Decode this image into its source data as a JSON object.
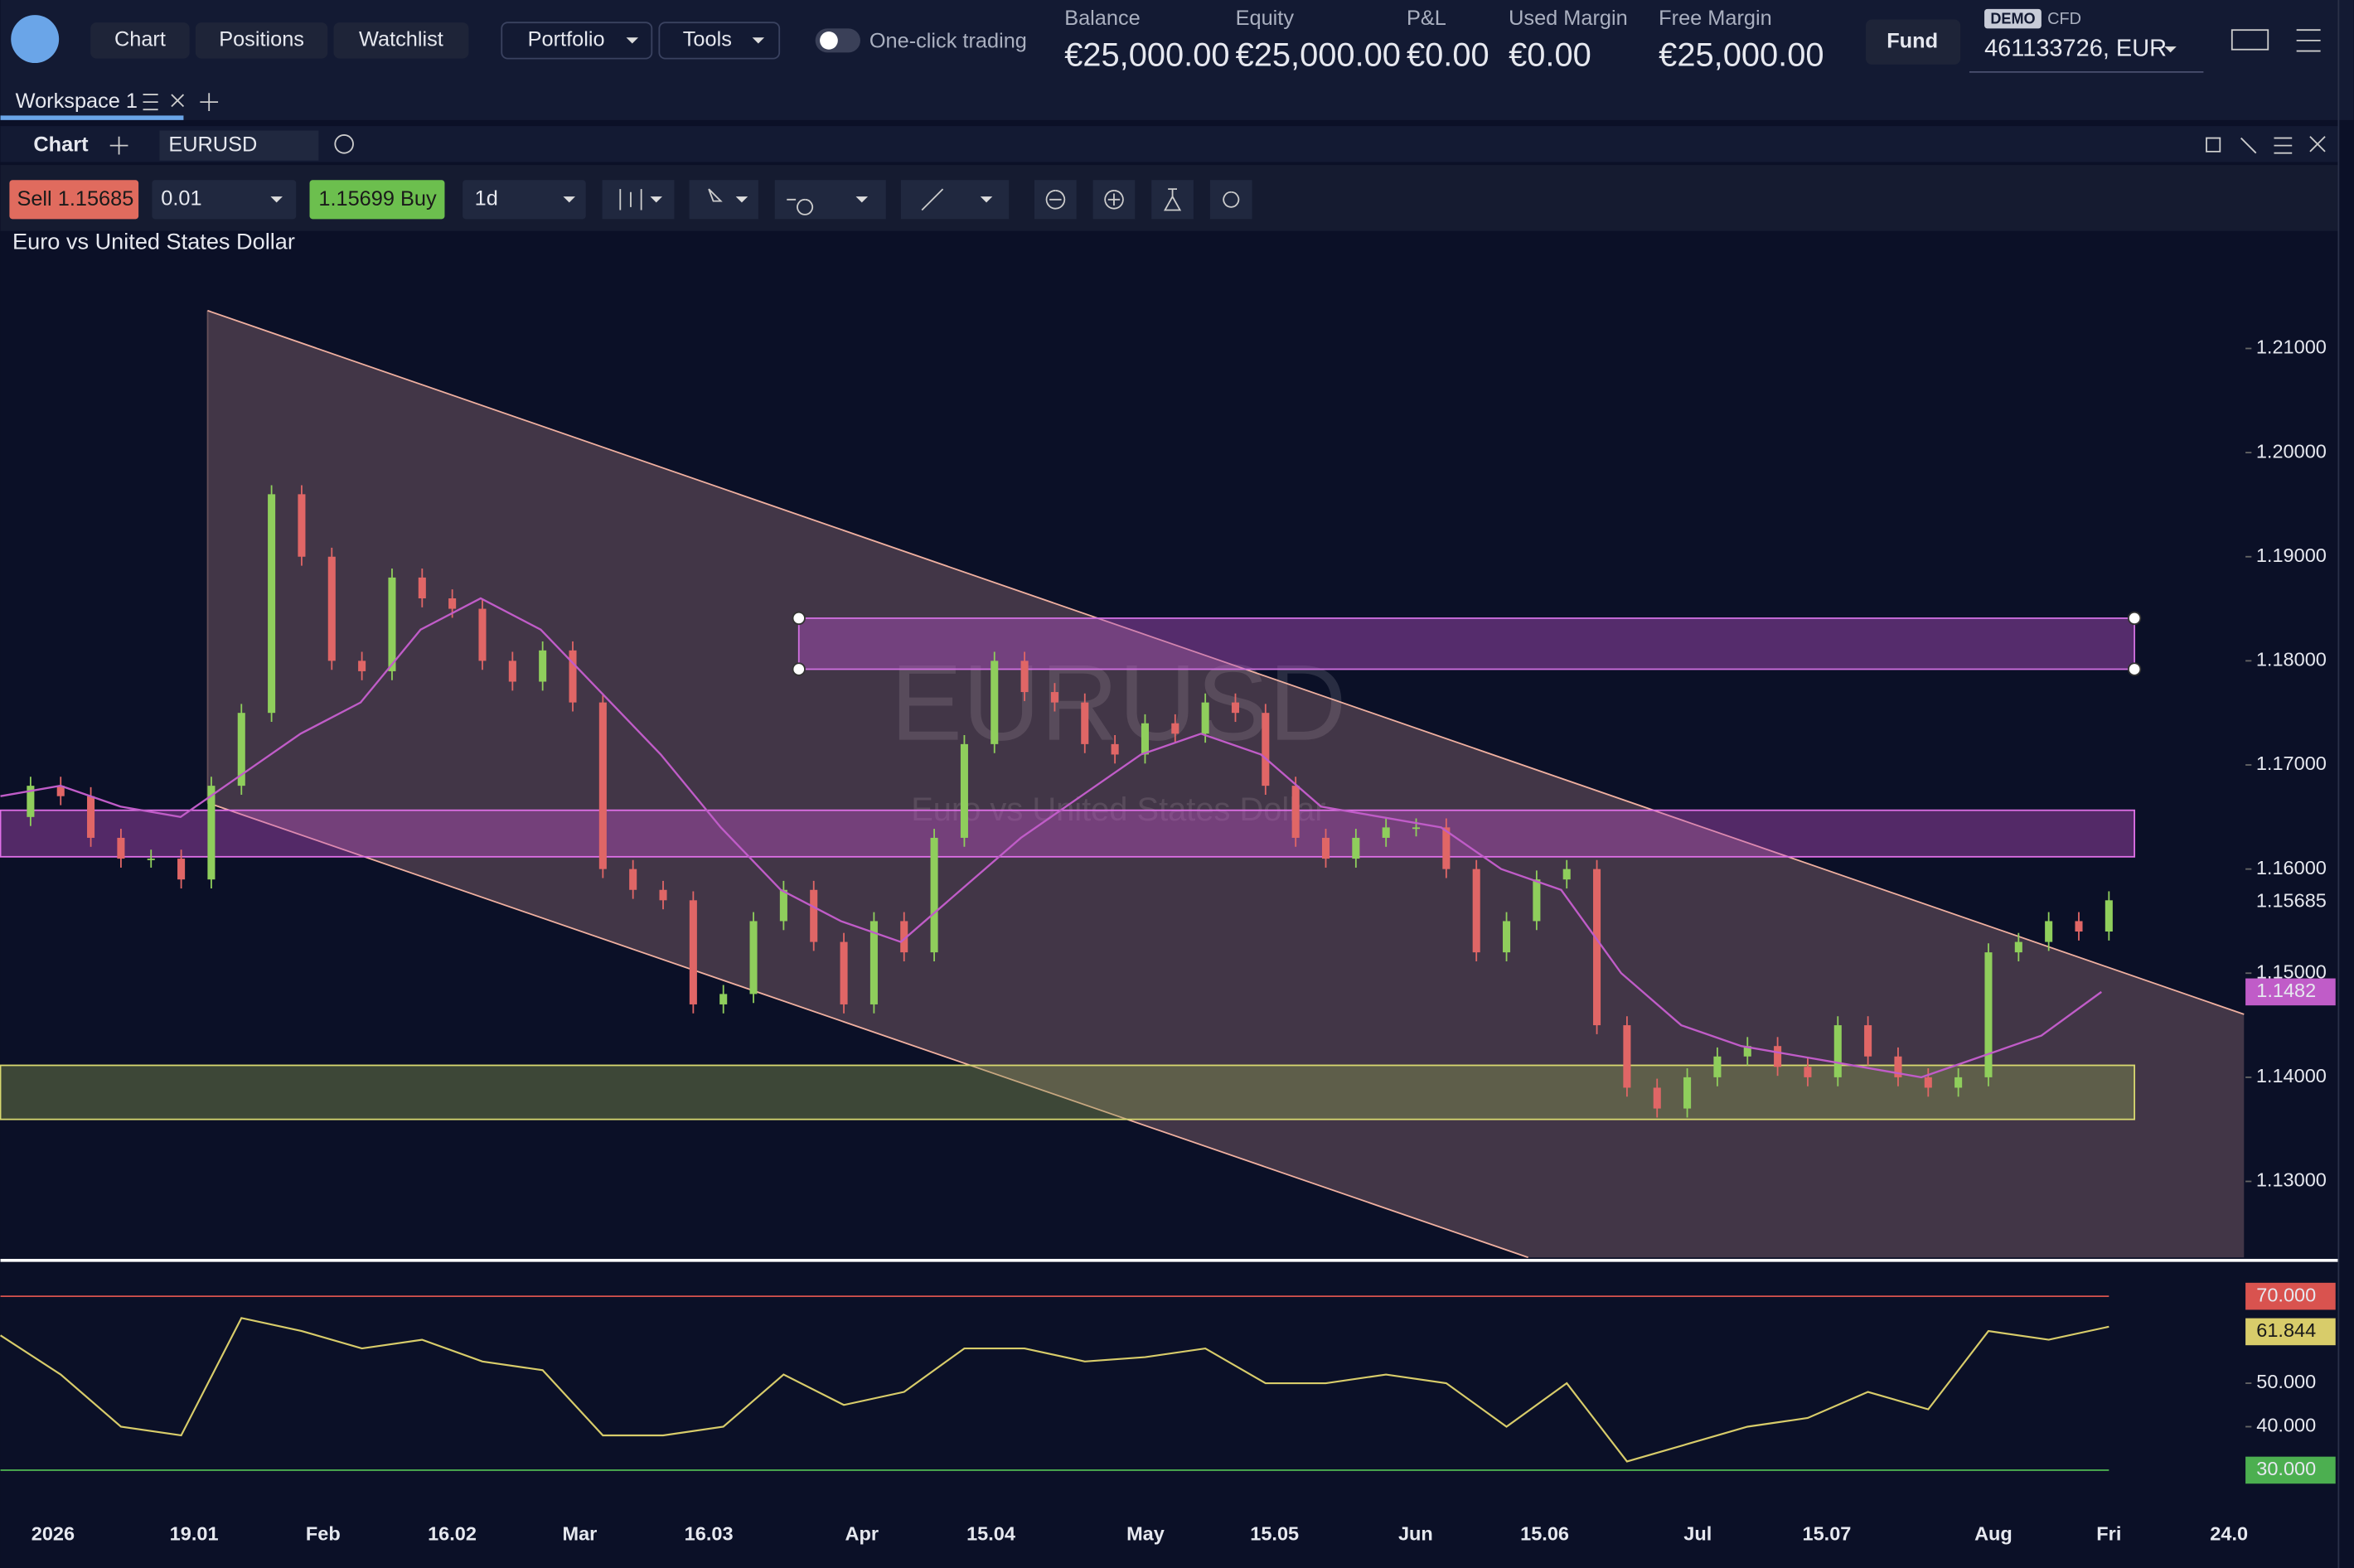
{
  "header": {
    "nav": [
      "Chart",
      "Positions",
      "Watchlist"
    ],
    "menus": [
      "Portfolio",
      "Tools"
    ],
    "toggle": "One-click trading",
    "stats": [
      {
        "label": "Balance",
        "value": "€25,000.00"
      },
      {
        "label": "Equity",
        "value": "€25,000.00"
      },
      {
        "label": "P&L",
        "value": "€0.00"
      },
      {
        "label": "Used Margin",
        "value": "€0.00"
      },
      {
        "label": "Free Margin",
        "value": "€25,000.00"
      }
    ],
    "fund": "Fund",
    "demo": "DEMO",
    "cfd": "CFD",
    "account": "461133726, EUR"
  },
  "workspace": "Workspace 1",
  "panel": {
    "title": "Chart",
    "symbol": "EURUSD",
    "sell_label": "Sell",
    "sell": "1.15685",
    "quantity": "0.01",
    "buy": "1.15699",
    "buy_label": "Buy",
    "interval": "1d"
  },
  "chart_data": {
    "type": "candlestick",
    "title": "Euro vs United States Dollar",
    "watermark": "EURUSD",
    "watermark_sub": "Euro vs United States Dollar",
    "closes": [
      1.165,
      1.168,
      1.167,
      1.163,
      1.161,
      1.161,
      1.159,
      1.168,
      1.175,
      1.196,
      1.19,
      1.18,
      1.179,
      1.188,
      1.186,
      1.185,
      1.18,
      1.178,
      1.181,
      1.176,
      1.16,
      1.158,
      1.157,
      1.147,
      1.148,
      1.155,
      1.158,
      1.153,
      1.147,
      1.155,
      1.152,
      1.163,
      1.172,
      1.18,
      1.177,
      1.176,
      1.172,
      1.171,
      1.174,
      1.173,
      1.176,
      1.175,
      1.168,
      1.163,
      1.161,
      1.163,
      1.164,
      1.164,
      1.16,
      1.152,
      1.155,
      1.159,
      1.16,
      1.145,
      1.139,
      1.137,
      1.14,
      1.142,
      1.143,
      1.141,
      1.14,
      1.145,
      1.142,
      1.14,
      1.139,
      1.14,
      1.152,
      1.153,
      1.155,
      1.154,
      1.157
    ],
    "ma": [
      1.167,
      1.168,
      1.166,
      1.165,
      1.169,
      1.173,
      1.176,
      1.183,
      1.186,
      1.183,
      1.177,
      1.171,
      1.164,
      1.158,
      1.155,
      1.153,
      1.158,
      1.163,
      1.167,
      1.171,
      1.173,
      1.171,
      1.166,
      1.165,
      1.164,
      1.16,
      1.158,
      1.15,
      1.145,
      1.143,
      1.142,
      1.141,
      1.14,
      1.142,
      1.144,
      1.1482
    ],
    "ma_color": "#c05cc8",
    "ylim": [
      1.2207,
      1.1227
    ],
    "yticks": [
      {
        "value": 1.21,
        "label": "1.21000"
      },
      {
        "value": 1.2,
        "label": "1.20000"
      },
      {
        "value": 1.19,
        "label": "1.19000"
      },
      {
        "value": 1.18,
        "label": "1.18000"
      },
      {
        "value": 1.17,
        "label": "1.17000"
      },
      {
        "value": 1.16,
        "label": "1.16000"
      },
      {
        "value": 1.15,
        "label": "1.15000"
      },
      {
        "value": 1.14,
        "label": "1.14000"
      },
      {
        "value": 1.13,
        "label": "1.13000"
      }
    ],
    "price_label": {
      "value": 1.15685,
      "label": "1.15685"
    },
    "ma_label": {
      "value": 1.1482,
      "label": "1.1482"
    },
    "rsi": [
      61,
      52,
      40,
      38,
      65,
      62,
      58,
      60,
      55,
      53,
      38,
      38,
      40,
      52,
      45,
      48,
      58,
      58,
      55,
      56,
      58,
      50,
      50,
      52,
      50,
      40,
      50,
      32,
      36,
      40,
      42,
      48,
      44,
      62,
      60,
      63
    ],
    "rsi_color": "#d8cc6a",
    "rsi_ylim": [
      74.8,
      21.3
    ],
    "rsi_levels": [
      {
        "value": 70,
        "label": "70.000",
        "color": "#d9534f"
      },
      {
        "value": 30,
        "label": "30.000",
        "color": "#4caf50"
      }
    ],
    "rsi_ticks": [
      {
        "value": 50,
        "label": "50.000"
      },
      {
        "value": 40,
        "label": "40.000"
      }
    ],
    "rsi_current": {
      "value": 61.844,
      "label": "61.844"
    },
    "x_labels": [
      "2026",
      "19.01",
      "Feb",
      "16.02",
      "Mar",
      "16.03",
      "Apr",
      "15.04",
      "May",
      "15.05",
      "Jun",
      "15.06",
      "Jul",
      "15.07",
      "Aug",
      "Fri",
      "24.0"
    ]
  }
}
